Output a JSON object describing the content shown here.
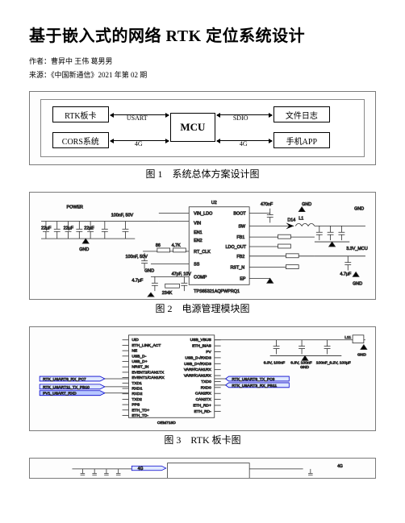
{
  "title": "基于嵌入式的网络 RTK 定位系统设计",
  "author_line": "作者：曹昇中 王伟 葛男男",
  "source_line": "来源：《中国新通信》2021 年第 02 期",
  "fig1": {
    "caption": "图 1　系统总体方案设计图",
    "blocks": {
      "rtk": "RTK板卡",
      "cors": "CORS系统",
      "mcu": "MCU",
      "log": "文件日志",
      "app": "手机APP"
    },
    "link_labels": {
      "usart": "USART",
      "g4a": "4G",
      "sdio": "SDIO",
      "g4b": "4G"
    }
  },
  "fig2": {
    "caption": "图 2　电源管理模块图",
    "chip": "TPS65321AQPWPRQ1",
    "labels": {
      "power": "POWER",
      "gnd": "GND",
      "vin_ldo": "VIN_LDO",
      "vin": "VIN",
      "en1": "EN1",
      "en2": "EN2",
      "rt_clk": "RT_CLK",
      "ss": "SS",
      "comp": "COMP",
      "boot": "BOOT",
      "sw": "SW",
      "fb1": "FB1",
      "ldo_out": "LDO_OUT",
      "fb2": "FB2",
      "rst_n": "RST_N",
      "ep": "EP",
      "v33": "3.3V_MCU",
      "cap22": "22μF",
      "cap100n": "100nF, 50V",
      "cap47u": "4.7μF",
      "cap47p": "47pF, 10V",
      "cap470n": "470nF",
      "cap47u2": "4.7μF",
      "r86": "86",
      "r47k": "4.7K",
      "d14": "D14",
      "u2": "U2",
      "l1": "L1"
    }
  },
  "fig3": {
    "caption": "图 3　RTK 板卡图",
    "chip": "OEM718D",
    "left_pins": [
      "UID",
      "ETH_LINK_ACT",
      "NE",
      "USB_D-",
      "USB_D+",
      "NRST_IN",
      "EVENT2/CAN1TX",
      "EVENT1/CAN1RX",
      "TXD1",
      "RXD1",
      "RXD2",
      "TXD2",
      "PPS",
      "ETH_TD+",
      "ETH_TD-"
    ],
    "right_pins": [
      "USB_VBUS",
      "ETH_BIAS",
      "PV",
      "USB_D-/RXD3",
      "USB_D+/RXD3",
      "VARF/CAN1RX",
      "VARF/CAN1RX",
      "TXD0",
      "RXD0",
      "CAN2RX",
      "CAN2TX",
      "ETH_RD+",
      "ETH_RD-"
    ],
    "nets": {
      "rx6": "RTK_USART6_RX_PC7",
      "tx11": "RTK_USART11_TX_PB10",
      "pv1": "PV1_USART_RXD",
      "tx6": "RTK_USART6_TX_PC6",
      "rx3": "RTK_USART3_RX_PB11"
    },
    "caps": {
      "c1": "6.3V, 100nF",
      "c2": "6.3V, 100nF",
      "c3": "100nF_6.2V, 100μF"
    },
    "conn": {
      "l11": "L11",
      "gnd": "GND"
    }
  },
  "fig4": {
    "partial_net": "4G"
  },
  "colors": {
    "frame": "#7a7a7a",
    "wire": "#2a2a2a",
    "netlabel": "#0000cc",
    "bg": "#ffffff"
  }
}
